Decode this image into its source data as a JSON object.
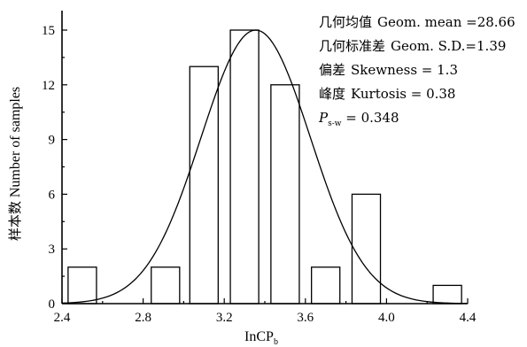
{
  "chart_data": {
    "type": "bar",
    "xlabel": "InCP",
    "xlabel_sub": "b",
    "ylabel_zh": "样本数",
    "ylabel_en": "Number of samples",
    "xlim": [
      2.4,
      4.4
    ],
    "ylim": [
      0,
      16
    ],
    "xticks": [
      2.4,
      2.8,
      3.2,
      3.6,
      4.0,
      4.4
    ],
    "xtick_labels": [
      "2.4",
      "2.8",
      "3.2",
      "3.6",
      "4.0",
      "4.4"
    ],
    "yticks": [
      0,
      3,
      6,
      9,
      12,
      15
    ],
    "ytick_labels": [
      "0",
      "3",
      "6",
      "9",
      "12",
      "15"
    ],
    "bars": [
      {
        "x0": 2.43,
        "x1": 2.57,
        "value": 2
      },
      {
        "x0": 2.84,
        "x1": 2.98,
        "value": 2
      },
      {
        "x0": 3.03,
        "x1": 3.17,
        "value": 13
      },
      {
        "x0": 3.23,
        "x1": 3.37,
        "value": 15
      },
      {
        "x0": 3.43,
        "x1": 3.57,
        "value": 12
      },
      {
        "x0": 3.63,
        "x1": 3.77,
        "value": 2
      },
      {
        "x0": 3.83,
        "x1": 3.97,
        "value": 6
      },
      {
        "x0": 4.23,
        "x1": 4.37,
        "value": 1
      }
    ],
    "normal_curve": {
      "mean": 3.355,
      "sd": 0.27,
      "peak": 15
    },
    "stats": [
      {
        "label_zh": "几何均值",
        "text": "Geom. mean =28.66"
      },
      {
        "label_zh": "几何标准差",
        "text": "Geom. S.D.=1.39"
      },
      {
        "label_zh": "偏差",
        "text": "Skewness = 1.3"
      },
      {
        "label_zh": "峰度",
        "text": "Kurtosis = 0.38"
      }
    ],
    "pvalue": {
      "symbol": "P",
      "sub": "s-w",
      "text": " = 0.348"
    }
  }
}
